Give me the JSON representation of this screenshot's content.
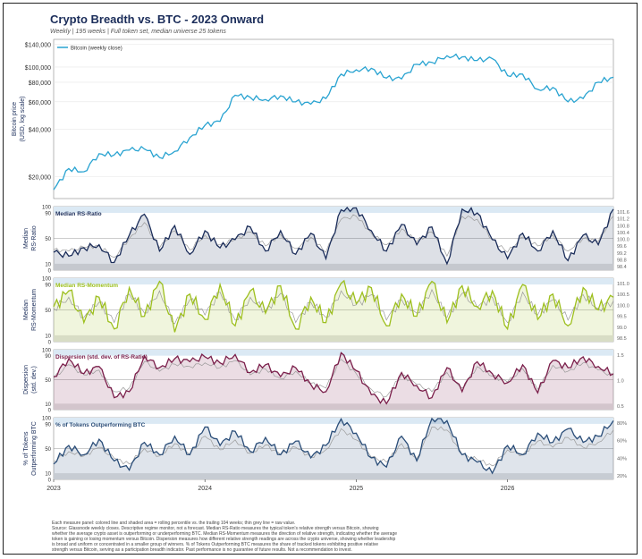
{
  "title": "Crypto Breadth vs. BTC - 2023 Onward",
  "subtitle": "Weekly | 195 weeks | Full token set, median universe 25 tokens",
  "footer": {
    "lines": [
      "Each measure panel: colored line and shaded area = rolling percentile vs. the trailing 104 weeks; thin grey line = raw value.",
      "Source: Glassnode weekly closes. Descriptive regime monitor, not a forecast. Median RS-Ratio measures the typical token's relative strength versus Bitcoin, showing",
      "whether the average crypto asset is outperforming or underperforming BTC. Median RS-Momentum measures the direction of relative strength, indicating whether the average",
      "token is gaining or losing momentum versus Bitcoin. Dispersion measures how different relative strength readings are across the crypto universe, showing whether leadership",
      "is broad and uniform or concentrated in a smaller group of winners. % of Tokens Outperforming BTC measures the share of tracked tokens exhibiting positive relative",
      "strength versus Bitcoin, serving as a participation breadth indicator. Past performance is no guarantee of future results. Not a recommendation to invest."
    ]
  },
  "chart_data": [
    {
      "type": "line",
      "ylabel": "Bitcoin price\n(USD, log scale)",
      "y_scale": "log",
      "ylim": [
        14500,
        150000
      ],
      "y_ticks": [
        "$140,000",
        "$100,000",
        "$80,000",
        "$60,000",
        "$40,000",
        "$20,000"
      ],
      "y_tick_values": [
        140000,
        100000,
        80000,
        60000,
        40000,
        20000
      ],
      "legend": {
        "position": "top-left",
        "entries": [
          "Bitcoin (weekly close)"
        ]
      },
      "color": "#29a3d1",
      "x": [
        2023.0,
        2023.1,
        2023.2,
        2023.3,
        2023.4,
        2023.5,
        2023.6,
        2023.7,
        2023.8,
        2023.9,
        2024.0,
        2024.1,
        2024.2,
        2024.3,
        2024.4,
        2024.5,
        2024.6,
        2024.7,
        2024.8,
        2024.9,
        2025.0,
        2025.1,
        2025.2,
        2025.3,
        2025.4,
        2025.5,
        2025.6,
        2025.7,
        2025.8,
        2025.9,
        2026.0,
        2026.1,
        2026.2,
        2026.3,
        2026.4,
        2026.5,
        2026.6,
        2026.7
      ],
      "series": [
        {
          "name": "Bitcoin (weekly close)",
          "values": [
            16500,
            22500,
            21500,
            28000,
            27500,
            29500,
            30000,
            26500,
            29000,
            35500,
            42500,
            45000,
            66000,
            64000,
            62000,
            65500,
            60000,
            58000,
            63000,
            90000,
            96000,
            98000,
            85000,
            84000,
            104000,
            107000,
            118000,
            116000,
            110000,
            113000,
            88000,
            90000,
            72000,
            74000,
            60000,
            63000,
            80000,
            86000
          ]
        }
      ]
    },
    {
      "type": "line",
      "label": "Median RS-Ratio",
      "ylabel": "Median\nRS-Ratio",
      "ylim": [
        0,
        100
      ],
      "y_ticks": [
        100,
        90,
        50,
        10,
        0
      ],
      "right_ticks": [
        "101.6",
        "101.2",
        "100.8",
        "100.4",
        "100.0",
        "99.6",
        "99.2",
        "98.8",
        "98.4"
      ],
      "color": "#1b2d5a",
      "x": [
        2023.0,
        2023.1,
        2023.2,
        2023.3,
        2023.4,
        2023.5,
        2023.6,
        2023.7,
        2023.8,
        2023.9,
        2024.0,
        2024.1,
        2024.2,
        2024.3,
        2024.4,
        2024.5,
        2024.6,
        2024.7,
        2024.8,
        2024.9,
        2025.0,
        2025.1,
        2025.2,
        2025.3,
        2025.4,
        2025.5,
        2025.6,
        2025.7,
        2025.8,
        2025.9,
        2026.0,
        2026.1,
        2026.2,
        2026.3,
        2026.4,
        2026.5,
        2026.6,
        2026.7
      ],
      "series": [
        {
          "name": "Median RS-Ratio percentile",
          "values": [
            28,
            22,
            35,
            40,
            12,
            55,
            88,
            30,
            70,
            25,
            62,
            35,
            48,
            68,
            30,
            62,
            25,
            58,
            18,
            95,
            98,
            62,
            30,
            72,
            40,
            68,
            10,
            96,
            90,
            48,
            18,
            58,
            30,
            62,
            15,
            55,
            40,
            96
          ]
        },
        {
          "name": "raw value",
          "values": [
            32,
            30,
            36,
            38,
            20,
            50,
            75,
            35,
            62,
            32,
            55,
            40,
            48,
            60,
            38,
            56,
            34,
            52,
            28,
            80,
            85,
            58,
            40,
            65,
            45,
            60,
            22,
            85,
            80,
            48,
            28,
            52,
            38,
            55,
            30,
            50,
            45,
            85
          ]
        }
      ]
    },
    {
      "type": "line",
      "label": "Median RS-Momentum",
      "ylabel": "Median\nRS-Momentum",
      "ylim": [
        0,
        100
      ],
      "y_ticks": [
        100,
        90,
        50,
        10,
        0
      ],
      "right_ticks": [
        "101.0",
        "100.5",
        "100.0",
        "99.5",
        "99.0",
        "98.5"
      ],
      "color": "#9dbf1e",
      "x": [
        2023.0,
        2023.1,
        2023.2,
        2023.3,
        2023.4,
        2023.5,
        2023.6,
        2023.7,
        2023.8,
        2023.9,
        2024.0,
        2024.1,
        2024.2,
        2024.3,
        2024.4,
        2024.5,
        2024.6,
        2024.7,
        2024.8,
        2024.9,
        2025.0,
        2025.1,
        2025.2,
        2025.3,
        2025.4,
        2025.5,
        2025.6,
        2025.7,
        2025.8,
        2025.9,
        2026.0,
        2026.1,
        2026.2,
        2026.3,
        2026.4,
        2026.5,
        2026.6,
        2026.7
      ],
      "series": [
        {
          "name": "Median RS-Momentum percentile",
          "values": [
            55,
            80,
            30,
            70,
            20,
            85,
            40,
            95,
            15,
            75,
            35,
            90,
            25,
            80,
            45,
            88,
            20,
            70,
            30,
            92,
            60,
            85,
            25,
            75,
            40,
            95,
            30,
            88,
            55,
            80,
            20,
            90,
            35,
            75,
            25,
            85,
            50,
            70
          ]
        },
        {
          "name": "raw value",
          "values": [
            52,
            70,
            38,
            62,
            30,
            75,
            45,
            80,
            28,
            66,
            42,
            78,
            34,
            70,
            48,
            76,
            30,
            62,
            38,
            80,
            58,
            74,
            34,
            66,
            45,
            82,
            38,
            76,
            54,
            70,
            30,
            78,
            42,
            66,
            34,
            74,
            52,
            64
          ]
        }
      ]
    },
    {
      "type": "line",
      "label": "Dispersion (std. dev. of RS-Ratio)",
      "ylabel": "Dispersion\n(std. dev.)",
      "ylim": [
        0,
        100
      ],
      "y_ticks": [
        100,
        90,
        50,
        10,
        0
      ],
      "right_ticks": [
        "1.5",
        "1.0",
        "0.5"
      ],
      "color": "#7a1e4a",
      "x": [
        2023.0,
        2023.1,
        2023.2,
        2023.3,
        2023.4,
        2023.5,
        2023.6,
        2023.7,
        2023.8,
        2023.9,
        2024.0,
        2024.1,
        2024.2,
        2024.3,
        2024.4,
        2024.5,
        2024.6,
        2024.7,
        2024.8,
        2024.9,
        2025.0,
        2025.1,
        2025.2,
        2025.3,
        2025.4,
        2025.5,
        2025.6,
        2025.7,
        2025.8,
        2025.9,
        2026.0,
        2026.1,
        2026.2,
        2026.3,
        2026.4,
        2026.5,
        2026.6,
        2026.7
      ],
      "series": [
        {
          "name": "Dispersion percentile",
          "values": [
            55,
            85,
            60,
            72,
            20,
            30,
            90,
            70,
            85,
            80,
            88,
            78,
            92,
            62,
            75,
            55,
            70,
            42,
            30,
            95,
            65,
            25,
            10,
            62,
            40,
            20,
            70,
            30,
            80,
            60,
            45,
            75,
            28,
            82,
            70,
            88,
            72,
            60
          ]
        },
        {
          "name": "raw value",
          "values": [
            52,
            75,
            58,
            66,
            30,
            36,
            80,
            64,
            76,
            72,
            78,
            70,
            82,
            58,
            68,
            52,
            64,
            44,
            36,
            84,
            60,
            34,
            22,
            58,
            42,
            30,
            62,
            36,
            72,
            56,
            46,
            68,
            34,
            74,
            64,
            78,
            66,
            56
          ]
        }
      ]
    },
    {
      "type": "line",
      "label": "% of Tokens Outperforming BTC",
      "ylabel": "% of Tokens\nOutperforming BTC",
      "ylim": [
        0,
        100
      ],
      "y_ticks": [
        100,
        90,
        50,
        10,
        0
      ],
      "right_ticks": [
        "80%",
        "60%",
        "40%",
        "20%"
      ],
      "color": "#2a4d78",
      "x": [
        2023.0,
        2023.1,
        2023.2,
        2023.3,
        2023.4,
        2023.5,
        2023.6,
        2023.7,
        2023.8,
        2023.9,
        2024.0,
        2024.1,
        2024.2,
        2024.3,
        2024.4,
        2024.5,
        2024.6,
        2024.7,
        2024.8,
        2024.9,
        2025.0,
        2025.1,
        2025.2,
        2025.3,
        2025.4,
        2025.5,
        2025.6,
        2025.7,
        2025.8,
        2025.9,
        2026.0,
        2026.1,
        2026.2,
        2026.3,
        2026.4,
        2026.5,
        2026.6,
        2026.7
      ],
      "series": [
        {
          "name": "% outperforming percentile",
          "values": [
            25,
            55,
            40,
            65,
            30,
            15,
            60,
            40,
            70,
            40,
            85,
            55,
            78,
            45,
            68,
            40,
            62,
            35,
            55,
            98,
            75,
            35,
            20,
            70,
            30,
            100,
            95,
            40,
            28,
            10,
            55,
            40,
            75,
            60,
            82,
            60,
            70,
            95
          ]
        },
        {
          "name": "raw value",
          "values": [
            30,
            45,
            38,
            52,
            34,
            25,
            50,
            38,
            58,
            40,
            70,
            48,
            64,
            42,
            56,
            40,
            52,
            36,
            48,
            82,
            64,
            36,
            28,
            58,
            34,
            85,
            80,
            40,
            32,
            22,
            48,
            40,
            62,
            52,
            68,
            52,
            60,
            80
          ]
        }
      ]
    }
  ],
  "x_axis": {
    "ticks": [
      "2023",
      "2024",
      "2025",
      "2026"
    ],
    "tick_values": [
      2023,
      2024,
      2025,
      2026
    ],
    "xlim": [
      2023.0,
      2026.7
    ]
  }
}
